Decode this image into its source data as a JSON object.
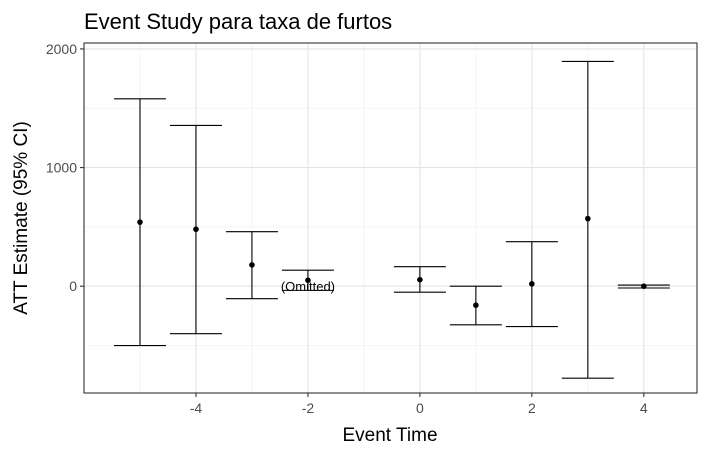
{
  "chart_data": {
    "type": "scatter",
    "title": "Event Study para taxa de furtos",
    "xlabel": "Event Time",
    "ylabel": "ATT Estimate (95% CI)",
    "xlim": [
      -6.0,
      4.95
    ],
    "ylim": [
      -900,
      2050
    ],
    "x_ticks": [
      -4,
      -2,
      0,
      2,
      4
    ],
    "x_tick_labels": [
      "-4",
      "-2",
      "0",
      "2",
      "4"
    ],
    "y_ticks": [
      0,
      1000,
      2000
    ],
    "y_tick_labels": [
      "0",
      "1000",
      "2000"
    ],
    "grid": true,
    "legend": "none",
    "series": [
      {
        "points": [
          {
            "x": -5,
            "estimate": 540,
            "ci_low": -500,
            "ci_high": 1580
          },
          {
            "x": -4,
            "estimate": 480,
            "ci_low": -400,
            "ci_high": 1355
          },
          {
            "x": -3,
            "estimate": 180,
            "ci_low": -105,
            "ci_high": 460
          },
          {
            "x": -2,
            "estimate": 50,
            "ci_low": -35,
            "ci_high": 135
          },
          {
            "x": 0,
            "estimate": 55,
            "ci_low": -50,
            "ci_high": 165
          },
          {
            "x": 1,
            "estimate": -160,
            "ci_low": -325,
            "ci_high": 0
          },
          {
            "x": 2,
            "estimate": 20,
            "ci_low": -340,
            "ci_high": 375
          },
          {
            "x": 3,
            "estimate": 570,
            "ci_low": -775,
            "ci_high": 1895
          },
          {
            "x": 4,
            "estimate": 0,
            "ci_low": -15,
            "ci_high": 10
          }
        ]
      }
    ],
    "annotations": [
      {
        "text": "(Omitted)",
        "x": -2,
        "y": 0
      }
    ]
  }
}
